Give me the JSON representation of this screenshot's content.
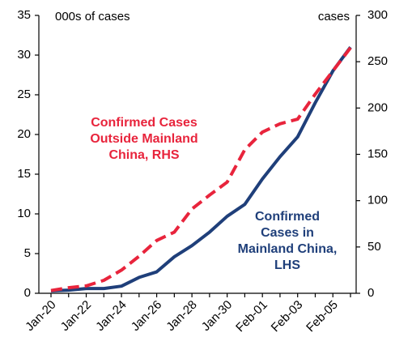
{
  "chart_data": {
    "type": "line",
    "categories": [
      "Jan-20",
      null,
      "Jan-22",
      null,
      "Jan-24",
      null,
      "Jan-26",
      null,
      "Jan-28",
      null,
      "Jan-30",
      null,
      "Feb-01",
      null,
      "Feb-03",
      null,
      "Feb-05",
      null
    ],
    "ylabel": "000s of cases",
    "y2label": "cases",
    "ylim": [
      0,
      35
    ],
    "yticks": [
      0,
      5,
      10,
      15,
      20,
      25,
      30,
      35
    ],
    "y2lim": [
      0,
      300
    ],
    "y2ticks": [
      0,
      50,
      100,
      150,
      200,
      250,
      300
    ],
    "series": [
      {
        "color": "#1f3f7a",
        "dashed": false,
        "axis": "y",
        "label_lines": [
          "Confirmed",
          "Cases in",
          "Mainland China,",
          "LHS"
        ],
        "values": [
          0.3,
          0.4,
          0.6,
          0.6,
          0.9,
          2.0,
          2.7,
          4.6,
          6.0,
          7.7,
          9.7,
          11.2,
          14.4,
          17.2,
          19.7,
          24.0,
          28.0,
          31.0
        ]
      },
      {
        "color": "#e8243c",
        "dashed": true,
        "axis": "y2",
        "label_lines": [
          "Confirmed Cases",
          "Outside  Mainland",
          "China, RHS"
        ],
        "values": [
          3,
          6,
          8,
          14,
          25,
          40,
          57,
          66,
          91,
          106,
          120,
          155,
          174,
          183,
          188,
          215,
          240,
          265
        ]
      }
    ],
    "grid": false
  }
}
